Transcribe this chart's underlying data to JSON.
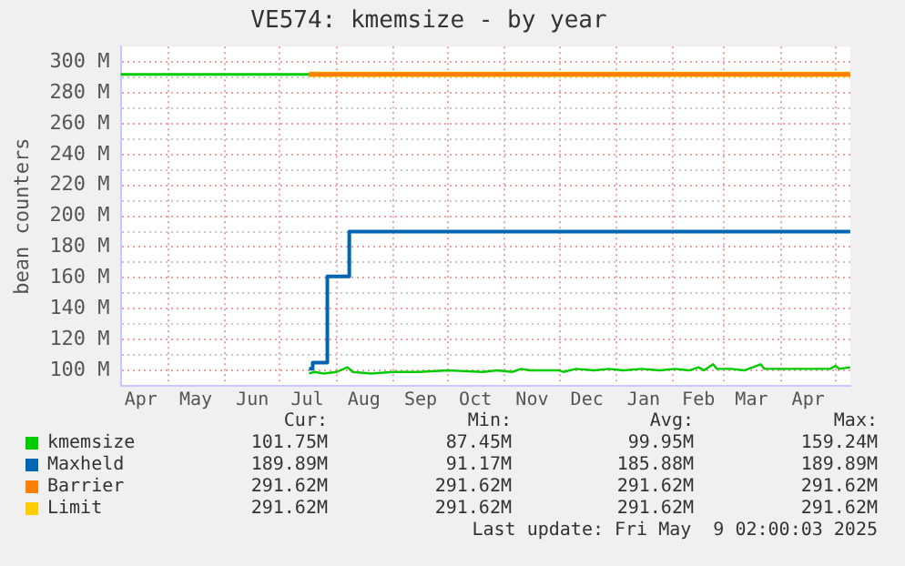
{
  "chart_data": {
    "type": "line",
    "title": "VE574: kmemsize - by year",
    "ylabel": "bean counters",
    "xlim": [
      "2024-04-05",
      "2025-05-09T02:00"
    ],
    "xticks": [
      {
        "value": "2024-04-16",
        "label": "Apr"
      },
      {
        "value": "2024-05-01",
        "label": null
      },
      {
        "value": "2024-05-16",
        "label": "May"
      },
      {
        "value": "2024-06-01",
        "label": null
      },
      {
        "value": "2024-06-16",
        "label": "Jun"
      },
      {
        "value": "2024-07-01",
        "label": null
      },
      {
        "value": "2024-07-16",
        "label": "Jul"
      },
      {
        "value": "2024-08-01",
        "label": null
      },
      {
        "value": "2024-08-16",
        "label": "Aug"
      },
      {
        "value": "2024-09-01",
        "label": null
      },
      {
        "value": "2024-09-16",
        "label": "Sep"
      },
      {
        "value": "2024-10-01",
        "label": null
      },
      {
        "value": "2024-10-16",
        "label": "Oct"
      },
      {
        "value": "2024-11-01",
        "label": null
      },
      {
        "value": "2024-11-16",
        "label": "Nov"
      },
      {
        "value": "2024-12-01",
        "label": null
      },
      {
        "value": "2024-12-16",
        "label": "Dec"
      },
      {
        "value": "2025-01-01",
        "label": null
      },
      {
        "value": "2025-01-16",
        "label": "Jan"
      },
      {
        "value": "2025-02-01",
        "label": null
      },
      {
        "value": "2025-02-15",
        "label": "Feb"
      },
      {
        "value": "2025-03-01",
        "label": null
      },
      {
        "value": "2025-03-16",
        "label": "Mar"
      },
      {
        "value": "2025-04-01",
        "label": null
      },
      {
        "value": "2025-04-16",
        "label": "Apr"
      },
      {
        "value": "2025-05-01",
        "label": null
      }
    ],
    "ylim": [
      90,
      310
    ],
    "yticks": [
      {
        "value": 100,
        "label": "100 M"
      },
      {
        "value": 110,
        "label": null
      },
      {
        "value": 120,
        "label": "120 M"
      },
      {
        "value": 130,
        "label": null
      },
      {
        "value": 140,
        "label": "140 M"
      },
      {
        "value": 150,
        "label": null
      },
      {
        "value": 160,
        "label": "160 M"
      },
      {
        "value": 170,
        "label": null
      },
      {
        "value": 180,
        "label": "180 M"
      },
      {
        "value": 190,
        "label": null
      },
      {
        "value": 200,
        "label": "200 M"
      },
      {
        "value": 210,
        "label": null
      },
      {
        "value": 220,
        "label": "220 M"
      },
      {
        "value": 230,
        "label": null
      },
      {
        "value": 240,
        "label": "240 M"
      },
      {
        "value": 250,
        "label": null
      },
      {
        "value": 260,
        "label": "260 M"
      },
      {
        "value": 270,
        "label": null
      },
      {
        "value": 280,
        "label": "280 M"
      },
      {
        "value": 290,
        "label": null
      },
      {
        "value": 300,
        "label": "300 M"
      }
    ],
    "grid": true,
    "legend": "bottom",
    "ref_lines": [
      {
        "axis": "y",
        "value": 292,
        "color": "#00cc00"
      }
    ],
    "series": [
      {
        "name": "kmemsize",
        "color": "#00cc00",
        "x": [
          "2024-07-17",
          "2024-07-20",
          "2024-07-25",
          "2024-08-01",
          "2024-08-07",
          "2024-08-10",
          "2024-08-20",
          "2024-09-01",
          "2024-09-15",
          "2024-10-01",
          "2024-10-20",
          "2024-10-28",
          "2024-11-05",
          "2024-11-10",
          "2024-11-15",
          "2024-12-01",
          "2024-12-03",
          "2024-12-10",
          "2024-12-20",
          "2024-12-28",
          "2025-01-05",
          "2025-01-15",
          "2025-01-25",
          "2025-02-02",
          "2025-02-10",
          "2025-02-15",
          "2025-02-18",
          "2025-02-23",
          "2025-02-25",
          "2025-03-05",
          "2025-03-12",
          "2025-03-21",
          "2025-03-23",
          "2025-04-01",
          "2025-04-10",
          "2025-04-20",
          "2025-04-28",
          "2025-05-01",
          "2025-05-03",
          "2025-05-09"
        ],
        "values": [
          98,
          99,
          98,
          99,
          102,
          99,
          98,
          99,
          99,
          100,
          99,
          100,
          99,
          101,
          100,
          100,
          99,
          101,
          100,
          101,
          100,
          101,
          100,
          101,
          100,
          102,
          100,
          104,
          101,
          101,
          100,
          104,
          101,
          101,
          101,
          101,
          101,
          103,
          101,
          102
        ]
      },
      {
        "name": "Maxheld",
        "type": "step",
        "color": "#0066b3",
        "x": [
          "2024-07-17",
          "2024-07-19",
          "2024-07-27",
          "2024-08-08",
          "2025-05-09"
        ],
        "values": [
          101,
          105,
          161,
          190,
          190
        ]
      },
      {
        "name": "Barrier",
        "color": "#ff8000",
        "x": [
          "2024-07-17",
          "2025-05-09"
        ],
        "values": [
          292,
          292
        ]
      },
      {
        "name": "Limit",
        "color": "#ffcc00",
        "x": [
          "2024-07-17",
          "2025-05-09"
        ],
        "values": [
          292,
          292
        ]
      }
    ],
    "annotations": [
      "Cur:",
      "Min:",
      "Avg:",
      "Max:",
      "101.75M",
      "87.45M",
      "99.95M",
      "159.24M",
      "189.89M",
      "91.17M",
      "185.88M",
      "189.89M",
      "291.62M",
      "291.62M",
      "291.62M",
      "291.62M",
      "291.62M",
      "291.62M",
      "291.62M",
      "291.62M",
      "Last update: Fri May  9 02:00:03 2025"
    ]
  }
}
